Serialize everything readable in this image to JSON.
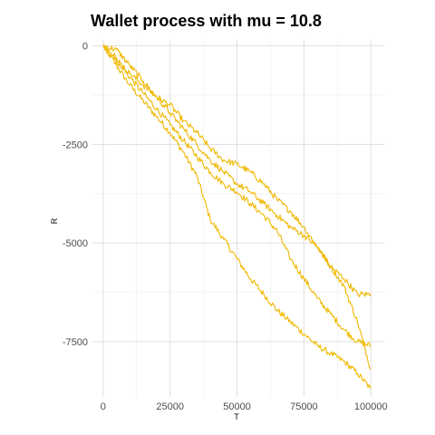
{
  "chart_data": {
    "type": "line",
    "title": "Wallet process with mu =  10.8",
    "xlabel": "T",
    "ylabel": "R",
    "xlim": [
      -4000,
      105000
    ],
    "ylim": [
      -8900,
      150
    ],
    "x_ticks": [
      0,
      25000,
      50000,
      75000,
      100000
    ],
    "x_tick_labels": [
      "0",
      "25000",
      "50000",
      "75000",
      "100000"
    ],
    "y_ticks": [
      0,
      -2500,
      -5000,
      -7500
    ],
    "y_tick_labels": [
      "0",
      "-2500",
      "-5000",
      "-7500"
    ],
    "grid": true,
    "legend": "none",
    "line_color": "#f0b800",
    "series": [
      {
        "x": [
          0,
          5000,
          10000,
          15000,
          20000,
          25000,
          30000,
          35000,
          40000,
          45000,
          50000,
          55000,
          60000,
          65000,
          70000,
          75000,
          80000,
          85000,
          90000,
          95000,
          100000
        ],
        "values": [
          0,
          -500,
          -1000,
          -1400,
          -1800,
          -2200,
          -2700,
          -3300,
          -4400,
          -4900,
          -5400,
          -5900,
          -6300,
          -6700,
          -7000,
          -7300,
          -7600,
          -7800,
          -8000,
          -8300,
          -8700
        ]
      },
      {
        "x": [
          0,
          5000,
          10000,
          15000,
          20000,
          25000,
          30000,
          35000,
          40000,
          45000,
          50000,
          55000,
          60000,
          65000,
          70000,
          75000,
          80000,
          85000,
          90000,
          95000,
          100000
        ],
        "values": [
          0,
          -300,
          -800,
          -1200,
          -1600,
          -2000,
          -2400,
          -2800,
          -3200,
          -3500,
          -3700,
          -4000,
          -4300,
          -4700,
          -5400,
          -5900,
          -6400,
          -6800,
          -7200,
          -7500,
          -7600
        ]
      },
      {
        "x": [
          0,
          5000,
          10000,
          15000,
          20000,
          25000,
          30000,
          35000,
          40000,
          45000,
          50000,
          55000,
          60000,
          65000,
          70000,
          75000,
          80000,
          85000,
          90000,
          95000,
          100000
        ],
        "values": [
          0,
          -100,
          -500,
          -900,
          -1300,
          -1500,
          -1900,
          -2200,
          -2600,
          -2900,
          -3000,
          -3200,
          -3500,
          -3900,
          -4200,
          -4600,
          -5100,
          -5600,
          -6100,
          -7000,
          -8200
        ]
      },
      {
        "x": [
          0,
          5000,
          10000,
          15000,
          20000,
          25000,
          30000,
          35000,
          40000,
          45000,
          50000,
          55000,
          60000,
          65000,
          70000,
          75000,
          80000,
          85000,
          90000,
          95000,
          100000
        ],
        "values": [
          0,
          -400,
          -700,
          -1000,
          -1300,
          -1700,
          -2100,
          -2500,
          -2900,
          -3200,
          -3500,
          -3700,
          -4000,
          -4300,
          -4600,
          -4800,
          -5100,
          -5600,
          -5900,
          -6300,
          -6300
        ]
      }
    ]
  }
}
